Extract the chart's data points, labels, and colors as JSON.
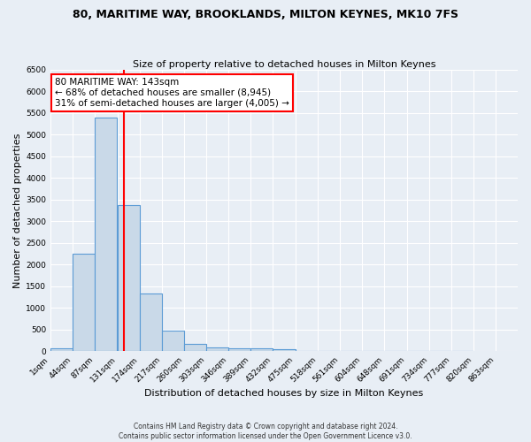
{
  "title": "80, MARITIME WAY, BROOKLANDS, MILTON KEYNES, MK10 7FS",
  "subtitle": "Size of property relative to detached houses in Milton Keynes",
  "xlabel": "Distribution of detached houses by size in Milton Keynes",
  "ylabel": "Number of detached properties",
  "bin_labels": [
    "1sqm",
    "44sqm",
    "87sqm",
    "131sqm",
    "174sqm",
    "217sqm",
    "260sqm",
    "303sqm",
    "346sqm",
    "389sqm",
    "432sqm",
    "475sqm",
    "518sqm",
    "561sqm",
    "604sqm",
    "648sqm",
    "691sqm",
    "734sqm",
    "777sqm",
    "820sqm",
    "863sqm"
  ],
  "bin_edges": [
    1,
    44,
    87,
    131,
    174,
    217,
    260,
    303,
    346,
    389,
    432,
    475,
    518,
    561,
    604,
    648,
    691,
    734,
    777,
    820,
    863
  ],
  "bar_heights": [
    75,
    2250,
    5400,
    3380,
    1340,
    475,
    175,
    90,
    75,
    75,
    50,
    0,
    0,
    0,
    0,
    0,
    0,
    0,
    0,
    0
  ],
  "bar_color": "#c9d9e8",
  "bar_edge_color": "#5b9bd5",
  "red_line_x": 143,
  "ylim": [
    0,
    6500
  ],
  "annotation_text_line1": "80 MARITIME WAY: 143sqm",
  "annotation_text_line2": "← 68% of detached houses are smaller (8,945)",
  "annotation_text_line3": "31% of semi-detached houses are larger (4,005) →",
  "footer_line1": "Contains HM Land Registry data © Crown copyright and database right 2024.",
  "footer_line2": "Contains public sector information licensed under the Open Government Licence v3.0.",
  "background_color": "#e8eef5",
  "grid_color": "#ffffff",
  "title_fontsize": 9,
  "subtitle_fontsize": 8,
  "axis_label_fontsize": 8,
  "tick_fontsize": 6.5
}
